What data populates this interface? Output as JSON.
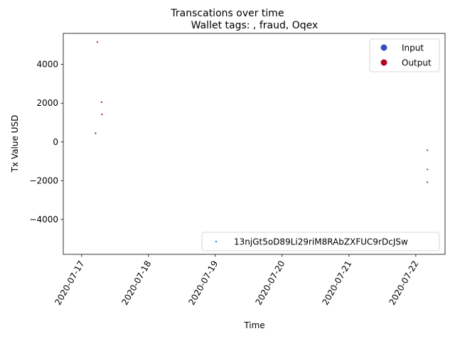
{
  "chart_data": {
    "type": "scatter",
    "title": "Transcations over time",
    "subtitle": "Wallet tags: , fraud, Oqex",
    "xlabel": "Time",
    "ylabel": "Tx Value USD",
    "xlim": [
      "2020-07-16T17:25",
      "2020-07-22T10:30"
    ],
    "ylim": [
      -5800,
      5600
    ],
    "x_ticks": [
      "2020-07-17",
      "2020-07-18",
      "2020-07-19",
      "2020-07-20",
      "2020-07-21",
      "2020-07-22"
    ],
    "y_ticks": [
      -4000,
      -2000,
      0,
      2000,
      4000
    ],
    "y_tick_labels": [
      "−4000",
      "−2000",
      "0",
      "2000",
      "4000"
    ],
    "grid": false,
    "legends": [
      {
        "placement": "upper-right",
        "entries": [
          {
            "label": "Input",
            "color": "#3b4cc0"
          },
          {
            "label": "Output",
            "color": "#b40426"
          }
        ]
      },
      {
        "placement": "lower-right",
        "entries": [
          {
            "label": "13njGt5oD89Li29riM8RAbZXFUC9rDcJSw",
            "color": "#1f77b4"
          }
        ]
      }
    ],
    "series": [
      {
        "direction": "Output",
        "color": "#b40426",
        "points": [
          {
            "x": "2020-07-17T05:00",
            "y": 450
          },
          {
            "x": "2020-07-17T05:40",
            "y": 5150
          },
          {
            "x": "2020-07-17T07:10",
            "y": 2050
          },
          {
            "x": "2020-07-17T07:20",
            "y": 1420
          }
        ]
      },
      {
        "direction": "Input",
        "color": "#3b4cc0",
        "points": [
          {
            "x": "2020-07-22T04:10",
            "y": -430
          },
          {
            "x": "2020-07-22T04:10",
            "y": -1420
          },
          {
            "x": "2020-07-22T04:10",
            "y": -2080
          }
        ]
      }
    ]
  }
}
